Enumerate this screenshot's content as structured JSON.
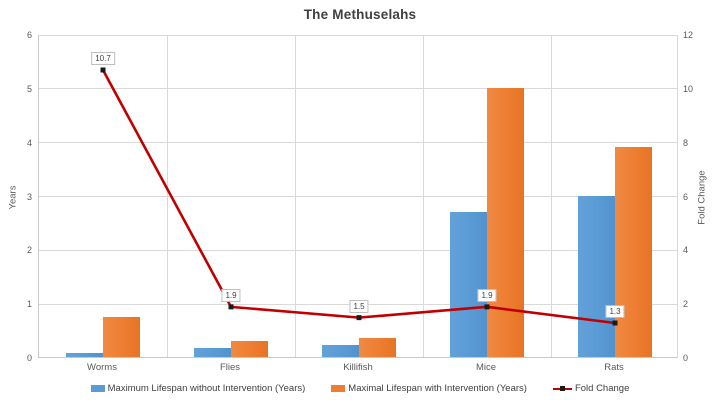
{
  "chart_data": {
    "type": "bar",
    "title": "The Methuselahs",
    "categories": [
      "Worms",
      "Flies",
      "Killifish",
      "Mice",
      "Rats"
    ],
    "series": [
      {
        "name": "Maximum Lifespan without Intervention (Years)",
        "type": "bar",
        "axis": "left",
        "color": "#5B9BD5",
        "values": [
          0.07,
          0.16,
          0.23,
          2.7,
          3.0
        ]
      },
      {
        "name": "Maximal Lifespan with Intervention (Years)",
        "type": "bar",
        "axis": "left",
        "color": "#ED7D31",
        "values": [
          0.75,
          0.3,
          0.35,
          5.0,
          3.9
        ]
      }
    ],
    "line_series": {
      "name": "Fold Change",
      "type": "line",
      "axis": "right",
      "color": "#C00000",
      "marker_color": "#1A1A1A",
      "values": [
        10.7,
        1.9,
        1.5,
        1.9,
        1.3
      ],
      "data_labels": [
        "10.7",
        "1.9",
        "1.5",
        "1.9",
        "1.3"
      ]
    },
    "axes": {
      "left": {
        "label": "Years",
        "min": 0,
        "max": 6,
        "ticks": [
          0,
          1,
          2,
          3,
          4,
          5,
          6
        ]
      },
      "right": {
        "label": "Fold Change",
        "min": 0,
        "max": 12,
        "ticks": [
          0,
          2,
          4,
          6,
          8,
          10,
          12
        ]
      }
    },
    "grid": true,
    "legend_position": "bottom"
  },
  "style_colors": {
    "gridline": "#D9D9D9",
    "axis_line": "#C9C9C9",
    "text": "#595959",
    "title_text": "#404040",
    "data_label_border": "#BFBFBF"
  }
}
